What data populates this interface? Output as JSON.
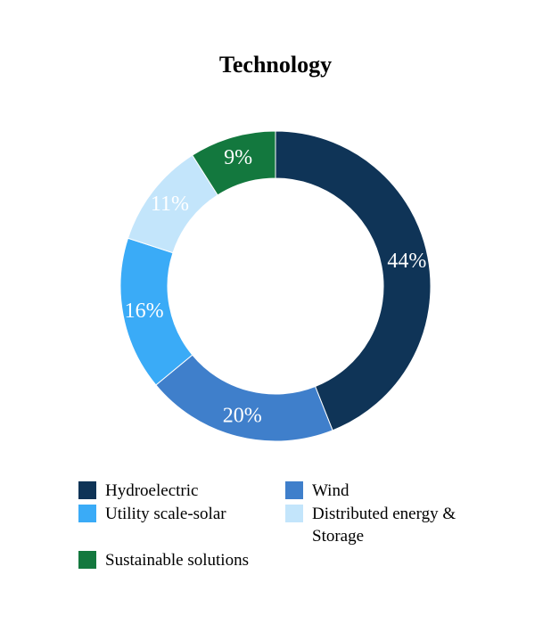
{
  "chart_data": {
    "type": "pie",
    "donut": true,
    "title": "Technology",
    "categories": [
      "Hydroelectric",
      "Wind",
      "Utility scale-solar",
      "Distributed energy & Storage",
      "Sustainable solutions"
    ],
    "values": [
      44,
      20,
      16,
      11,
      9
    ],
    "value_labels": [
      "44%",
      "20%",
      "16%",
      "11%",
      "9%"
    ],
    "colors": [
      "#0f3457",
      "#3f7fcb",
      "#3aabf7",
      "#c3e5fb",
      "#13783e"
    ],
    "label_colors": [
      "#ffffff",
      "#ffffff",
      "#ffffff",
      "#ffffff",
      "#ffffff"
    ],
    "legend_position": "bottom",
    "legend": [
      {
        "label": "Hydroelectric",
        "color": "#0f3457"
      },
      {
        "label": "Wind",
        "color": "#3f7fcb"
      },
      {
        "label": "Utility scale-solar",
        "color": "#3aabf7"
      },
      {
        "label": "Distributed energy & Storage",
        "color": "#c3e5fb"
      },
      {
        "label": "Sustainable solutions",
        "color": "#13783e"
      }
    ]
  }
}
